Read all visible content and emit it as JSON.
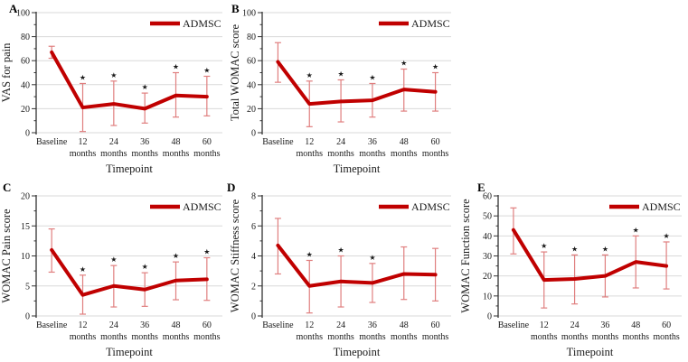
{
  "legend_label": "ADMSC",
  "sig_marker": "★",
  "colors": {
    "line": "#c00000",
    "error": "#e07f7f",
    "grid": "#d9d9d9",
    "axis": "#333333",
    "text": "#1a1a1a"
  },
  "chart_data": [
    {
      "panel": "A",
      "type": "line",
      "title": "",
      "xlabel": "Timepoint",
      "ylabel": "VAS for pain",
      "categories": [
        "Baseline",
        "12 months",
        "24 months",
        "36 months",
        "48 months",
        "60 months"
      ],
      "series": [
        {
          "name": "ADMSC",
          "values": [
            67,
            21,
            24,
            20,
            31,
            30
          ],
          "error_low": [
            62,
            1,
            6,
            8,
            13,
            14
          ],
          "error_high": [
            72,
            41,
            43,
            33,
            50,
            47
          ]
        }
      ],
      "significance": [
        false,
        true,
        true,
        true,
        true,
        true
      ],
      "ylim": [
        0,
        100
      ],
      "yticks": [
        0,
        20,
        40,
        60,
        80,
        100
      ],
      "grid": "horizontal",
      "legend_position": "top-right"
    },
    {
      "panel": "B",
      "type": "line",
      "title": "",
      "xlabel": "Timepoint",
      "ylabel": "Total WOMAC score",
      "categories": [
        "Baseline",
        "12 months",
        "24 months",
        "36 months",
        "48 months",
        "60 months"
      ],
      "series": [
        {
          "name": "ADMSC",
          "values": [
            59,
            24,
            26,
            27,
            36,
            34
          ],
          "error_low": [
            42,
            5,
            9,
            13,
            18,
            18
          ],
          "error_high": [
            75,
            43,
            44,
            41,
            53,
            50
          ]
        }
      ],
      "significance": [
        false,
        true,
        true,
        true,
        true,
        true
      ],
      "ylim": [
        0,
        100
      ],
      "yticks": [
        0,
        20,
        40,
        60,
        80,
        100
      ],
      "grid": "horizontal",
      "legend_position": "top-right"
    },
    {
      "panel": "C",
      "type": "line",
      "title": "",
      "xlabel": "Timepoint",
      "ylabel": "WOMAC Pain score",
      "categories": [
        "Baseline",
        "12 months",
        "24 months",
        "36 months",
        "48 months",
        "60 months"
      ],
      "series": [
        {
          "name": "ADMSC",
          "values": [
            11,
            3.5,
            5,
            4.4,
            5.9,
            6.1
          ],
          "error_low": [
            7.3,
            0.3,
            1.5,
            1.6,
            2.7,
            2.6
          ],
          "error_high": [
            14.5,
            6.8,
            8.4,
            7.2,
            9.0,
            9.7
          ]
        }
      ],
      "significance": [
        false,
        true,
        true,
        true,
        true,
        true
      ],
      "ylim": [
        0,
        20
      ],
      "yticks": [
        0,
        5,
        10,
        15,
        20
      ],
      "grid": "horizontal",
      "legend_position": "top-right"
    },
    {
      "panel": "D",
      "type": "line",
      "title": "",
      "xlabel": "Timepoint",
      "ylabel": "WOMAC Stiffness score",
      "categories": [
        "Baseline",
        "12 months",
        "24 months",
        "36 months",
        "48 months",
        "60 months"
      ],
      "series": [
        {
          "name": "ADMSC",
          "values": [
            4.7,
            2.0,
            2.3,
            2.2,
            2.8,
            2.75
          ],
          "error_low": [
            2.8,
            0.2,
            0.6,
            0.9,
            1.1,
            1.0
          ],
          "error_high": [
            6.5,
            3.7,
            4.0,
            3.5,
            4.6,
            4.5
          ]
        }
      ],
      "significance": [
        false,
        true,
        true,
        true,
        false,
        false
      ],
      "ylim": [
        0,
        8
      ],
      "yticks": [
        0,
        2,
        4,
        6,
        8
      ],
      "grid": "horizontal",
      "legend_position": "top-right"
    },
    {
      "panel": "E",
      "type": "line",
      "title": "",
      "xlabel": "Timepoint",
      "ylabel": "WOMAC Function score",
      "categories": [
        "Baseline",
        "12 months",
        "24 months",
        "36 months",
        "48 months",
        "60 months"
      ],
      "series": [
        {
          "name": "ADMSC",
          "values": [
            43,
            18,
            18.5,
            20,
            27,
            25
          ],
          "error_low": [
            31,
            4,
            6,
            9.5,
            14,
            13.5
          ],
          "error_high": [
            54,
            32,
            30.5,
            30.5,
            40,
            37
          ]
        }
      ],
      "significance": [
        false,
        true,
        true,
        true,
        true,
        true
      ],
      "ylim": [
        0,
        60
      ],
      "yticks": [
        0,
        10,
        20,
        30,
        40,
        50,
        60
      ],
      "grid": "horizontal",
      "legend_position": "top-right"
    }
  ]
}
